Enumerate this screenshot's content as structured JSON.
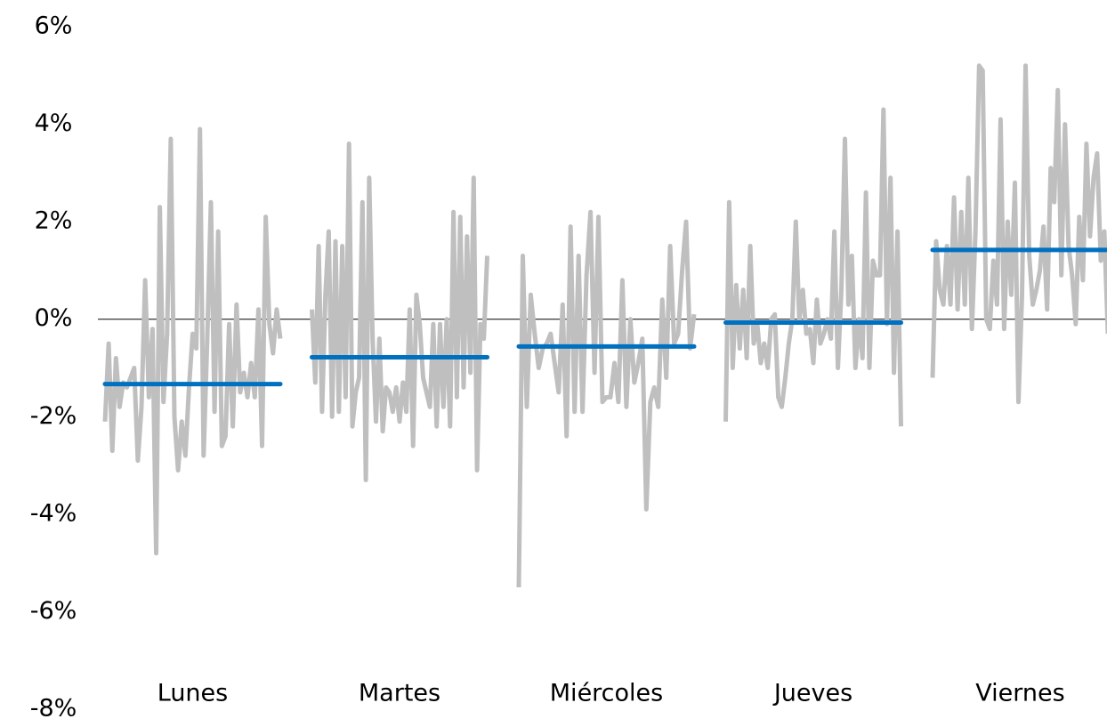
{
  "chart_data": {
    "type": "subseries",
    "categories": [
      "Lunes",
      "Martes",
      "Miércoles",
      "Jueves",
      "Viernes"
    ],
    "values": [
      [
        -2.1,
        -0.5,
        -2.7,
        -0.8,
        -1.8,
        -1.3,
        -1.4,
        -1.2,
        -1.0,
        -2.9,
        -1.8,
        0.8,
        -1.6,
        -0.2,
        -4.8,
        2.3,
        -1.7,
        -0.3,
        3.7,
        -2.0,
        -3.1,
        -2.1,
        -2.8,
        -1.4,
        -0.3,
        -0.6,
        3.9,
        -2.8,
        -0.4,
        2.4,
        -1.9,
        1.8,
        -2.6,
        -2.4,
        -0.1,
        -2.2,
        0.3,
        -1.5,
        -1.1,
        -1.6,
        -0.9,
        -1.6,
        0.2,
        -2.6,
        2.1,
        -0.1,
        -0.7,
        0.2,
        -0.4
      ],
      [
        0.2,
        -1.3,
        1.5,
        -1.9,
        0.5,
        1.8,
        -2.0,
        1.6,
        -1.9,
        1.5,
        -1.6,
        3.6,
        -2.2,
        -1.5,
        -1.2,
        2.4,
        -3.3,
        2.9,
        -0.4,
        -2.1,
        -0.4,
        -2.3,
        -1.4,
        -1.5,
        -1.9,
        -1.4,
        -2.1,
        -1.3,
        -1.9,
        0.2,
        -2.6,
        0.5,
        -0.1,
        -1.2,
        -1.5,
        -1.8,
        -0.1,
        -2.2,
        -0.1,
        -1.8,
        0.0,
        -2.2,
        2.2,
        -1.6,
        2.1,
        -1.4,
        1.7,
        -1.1,
        2.9,
        -3.1,
        -0.1,
        -0.4,
        1.3
      ],
      [
        -5.5,
        1.3,
        -1.8,
        0.5,
        -0.3,
        -1.0,
        -0.6,
        -0.5,
        -0.3,
        -0.9,
        -1.5,
        0.3,
        -2.4,
        1.9,
        -1.9,
        1.3,
        -1.9,
        0.9,
        2.2,
        -1.1,
        2.1,
        -1.7,
        -1.6,
        -1.6,
        -0.9,
        -1.7,
        0.8,
        -1.8,
        0.0,
        -1.3,
        -0.9,
        -0.4,
        -3.9,
        -1.7,
        -1.4,
        -1.8,
        0.4,
        -1.2,
        1.5,
        -0.5,
        -0.3,
        1.0,
        2.0,
        -0.6,
        0.1
      ],
      [
        -2.1,
        2.4,
        -1.0,
        0.7,
        -0.6,
        0.6,
        -0.8,
        1.5,
        -0.5,
        -0.1,
        -0.9,
        -0.5,
        -1.0,
        0.0,
        0.1,
        -1.6,
        -1.8,
        -1.2,
        -0.5,
        0.0,
        2.0,
        0.0,
        0.6,
        -0.3,
        -0.2,
        -0.9,
        0.4,
        -0.5,
        -0.3,
        0.0,
        -0.4,
        1.8,
        -1.0,
        0.6,
        3.7,
        0.3,
        1.3,
        -1.0,
        0.0,
        -0.8,
        2.6,
        -1.0,
        1.2,
        0.9,
        0.9,
        4.3,
        -0.1,
        2.9,
        -1.1,
        1.8,
        -2.2
      ],
      [
        -1.2,
        1.6,
        0.6,
        0.3,
        1.5,
        0.3,
        2.5,
        0.2,
        2.2,
        0.3,
        2.9,
        -0.2,
        1.8,
        5.2,
        5.1,
        0.0,
        -0.2,
        1.2,
        0.3,
        4.1,
        -0.2,
        2.0,
        0.5,
        2.8,
        -1.7,
        0.5,
        5.2,
        1.3,
        0.3,
        0.6,
        1.0,
        1.9,
        0.2,
        3.1,
        2.4,
        4.7,
        0.9,
        4.0,
        1.5,
        0.9,
        -0.1,
        2.1,
        0.8,
        3.6,
        1.7,
        2.9,
        3.4,
        1.2,
        1.8,
        -0.3
      ]
    ],
    "means": [
      -1.33,
      -0.78,
      -0.56,
      -0.07,
      1.42
    ],
    "line_color": "#bfbfbf",
    "mean_color": "#0070c0",
    "ylim": [
      -8,
      6
    ],
    "yticks": [
      {
        "value": -8,
        "label": "-8%"
      },
      {
        "value": -6,
        "label": "-6%"
      },
      {
        "value": -4,
        "label": "-4%"
      },
      {
        "value": -2,
        "label": "-2%"
      },
      {
        "value": 0,
        "label": "0%"
      },
      {
        "value": 2,
        "label": "2%"
      },
      {
        "value": 4,
        "label": "4%"
      },
      {
        "value": 6,
        "label": "6%"
      }
    ],
    "grid": false,
    "zero_line": true
  }
}
